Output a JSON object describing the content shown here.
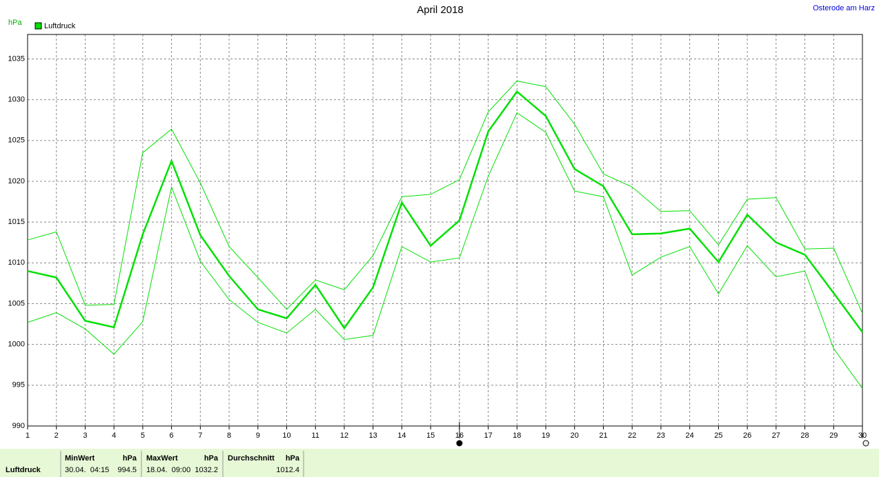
{
  "chart_data": {
    "type": "line",
    "title": "April 2018",
    "y_label": "hPa",
    "station": "Osterode am Harz",
    "x": [
      1,
      2,
      3,
      4,
      5,
      6,
      7,
      8,
      9,
      10,
      11,
      12,
      13,
      14,
      15,
      16,
      17,
      18,
      19,
      20,
      21,
      22,
      23,
      24,
      25,
      26,
      27,
      28,
      29,
      30
    ],
    "xlim": [
      1,
      30
    ],
    "xticks": [
      1,
      2,
      3,
      4,
      5,
      6,
      7,
      8,
      9,
      10,
      11,
      12,
      13,
      14,
      15,
      16,
      17,
      18,
      19,
      20,
      21,
      22,
      23,
      24,
      25,
      26,
      27,
      28,
      29,
      30
    ],
    "ylim": [
      990,
      1038
    ],
    "yticks": [
      990,
      995,
      1000,
      1005,
      1010,
      1015,
      1020,
      1025,
      1030,
      1035
    ],
    "grid": true,
    "legend": "top-left",
    "series": [
      {
        "name": "Luftdruck",
        "color": "#00e000",
        "values": [
          1009.0,
          1008.2,
          1002.9,
          1002.1,
          1013.5,
          1022.5,
          1013.4,
          1008.4,
          1004.3,
          1003.2,
          1007.3,
          1002.0,
          1007.0,
          1017.4,
          1012.1,
          1015.2,
          1026.1,
          1031.0,
          1028.0,
          1021.5,
          1019.4,
          1013.5,
          1013.6,
          1014.2,
          1010.1,
          1015.9,
          1012.5,
          1011.0,
          1006.3,
          1001.5
        ]
      },
      {
        "color": "#00e000",
        "values": [
          1012.8,
          1013.8,
          1004.8,
          1004.9,
          1023.5,
          1026.4,
          1019.8,
          1012.0,
          1008.2,
          1004.3,
          1007.9,
          1006.7,
          1010.9,
          1018.1,
          1018.4,
          1020.2,
          1028.5,
          1032.3,
          1031.6,
          1027.0,
          1020.9,
          1019.3,
          1016.3,
          1016.4,
          1012.2,
          1017.8,
          1018.0,
          1011.7,
          1011.8,
          1003.8
        ]
      },
      {
        "color": "#00e000",
        "values": [
          1002.7,
          1003.9,
          1001.9,
          998.8,
          1002.8,
          1019.3,
          1010.2,
          1005.5,
          1002.7,
          1001.4,
          1004.3,
          1000.6,
          1001.1,
          1012.0,
          1010.1,
          1010.6,
          1020.6,
          1028.4,
          1026.0,
          1018.8,
          1018.1,
          1008.5,
          1010.7,
          1012.0,
          1006.2,
          1012.1,
          1008.3,
          1009.0,
          999.5,
          994.6
        ]
      }
    ]
  },
  "summary": {
    "row_label": "Luftdruck",
    "min": {
      "header": "MinWert",
      "unit": "hPa",
      "time": "30.04.  04:15",
      "value": 994.5
    },
    "max": {
      "header": "MaxWert",
      "unit": "hPa",
      "time": "18.04.  09:00",
      "value": 1032.2
    },
    "avg": {
      "header": "Durchschnitt",
      "unit": "hPa",
      "value": 1012.4
    }
  }
}
